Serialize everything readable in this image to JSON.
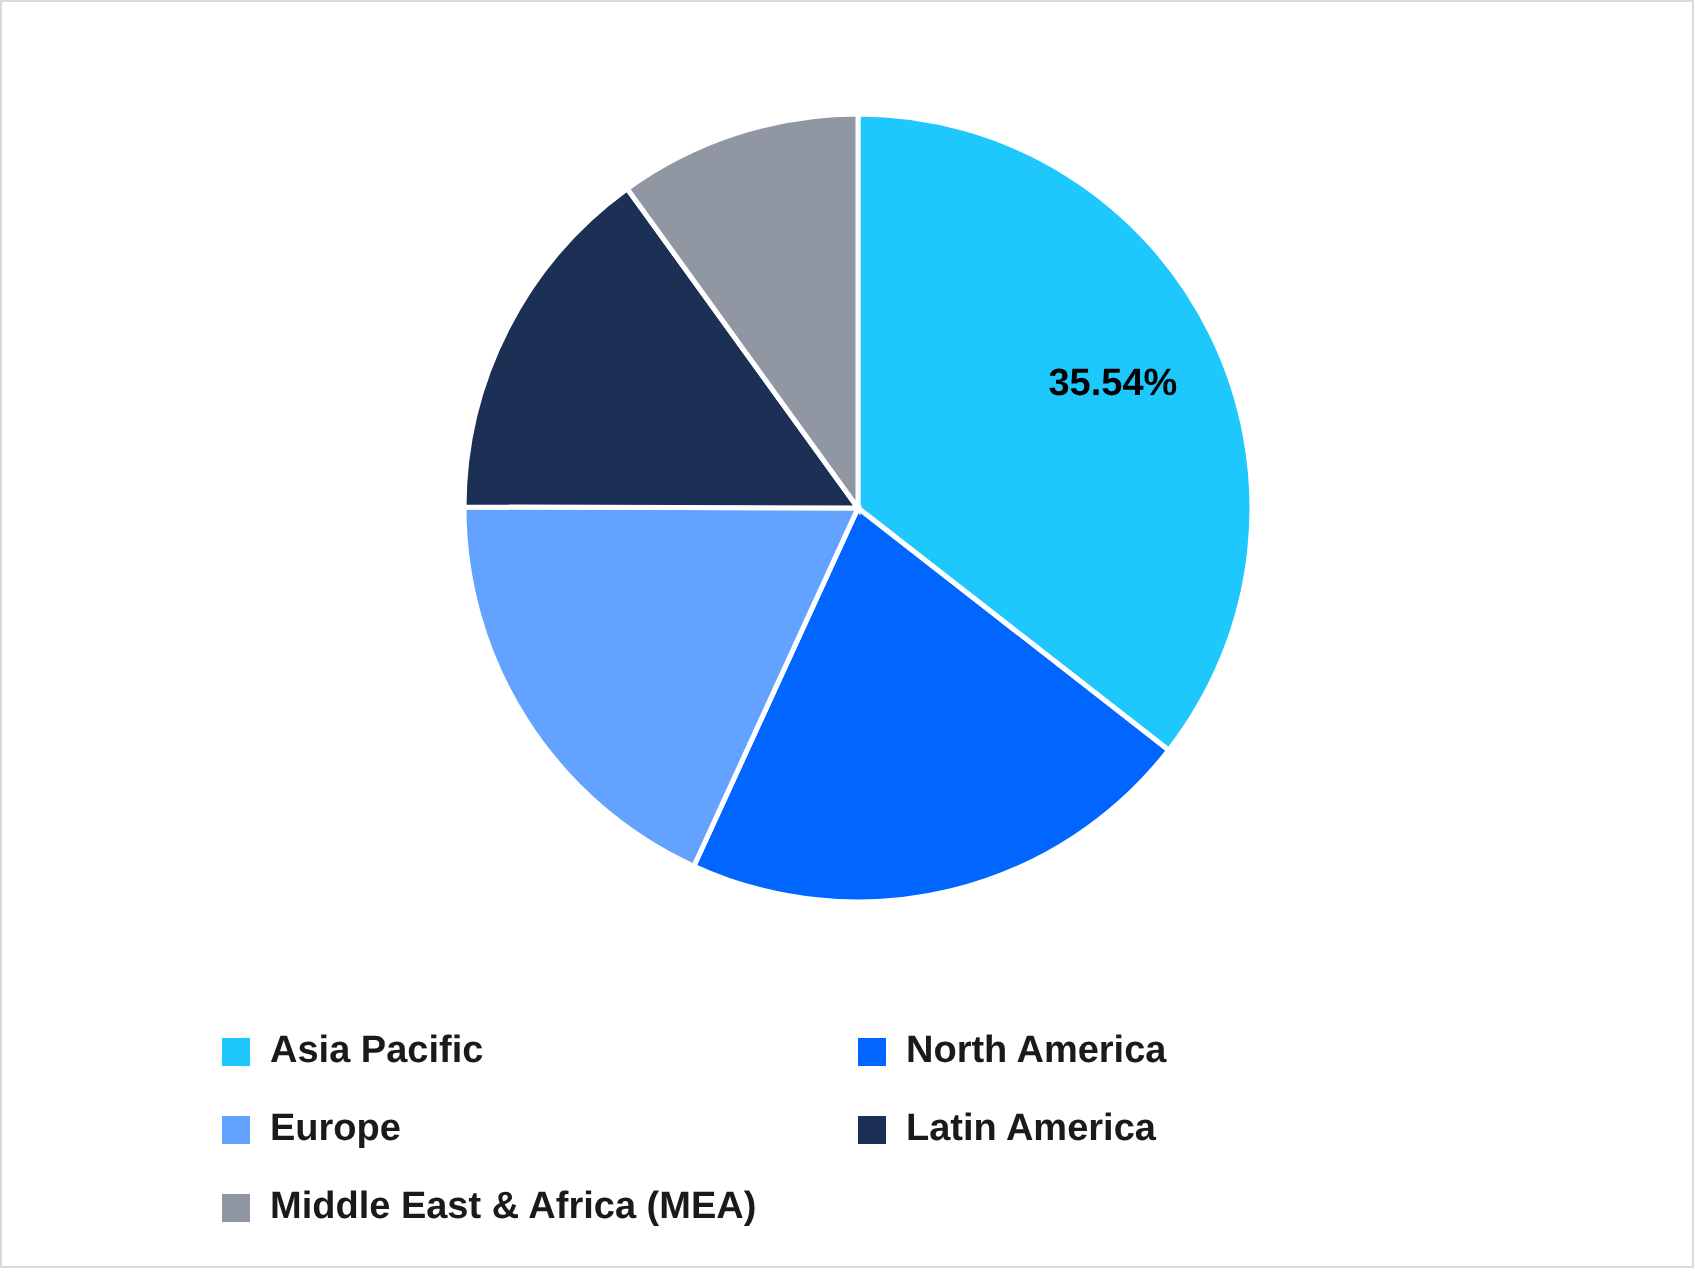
{
  "chart_data": {
    "type": "pie",
    "categories": [
      "Asia Pacific",
      "North America",
      "Europe",
      "Latin America",
      "Middle East & Africa (MEA)"
    ],
    "values": [
      35.54,
      21.3,
      18.2,
      15.0,
      9.96
    ],
    "colors": [
      "#1ec8fd",
      "#0066ff",
      "#63a3ff",
      "#1c3055",
      "#9097a3"
    ],
    "value_labels": [
      "35.54%",
      null,
      null,
      null,
      null
    ],
    "legend": "bottom"
  }
}
